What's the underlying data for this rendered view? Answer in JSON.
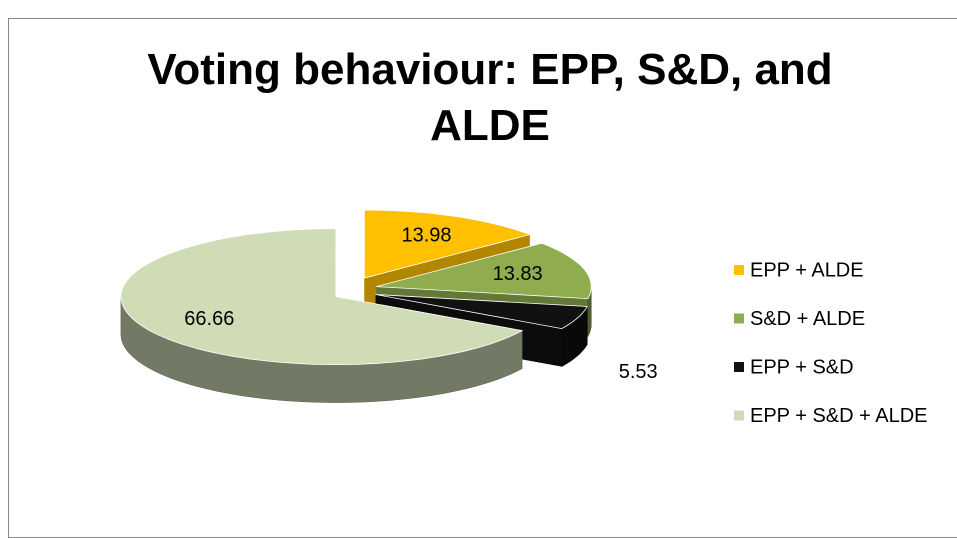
{
  "chart_data": {
    "type": "pie3d",
    "title": "Voting behaviour: EPP, S&D, and ALDE",
    "categories": [
      "EPP + ALDE",
      "S&D + ALDE",
      "EPP + S&D",
      "EPP + S&D + ALDE"
    ],
    "values": [
      13.98,
      13.83,
      5.53,
      66.66
    ],
    "colors": [
      "#ffc000",
      "#8fac4f",
      "#111111",
      "#cfdcb6"
    ],
    "legend": "right"
  }
}
